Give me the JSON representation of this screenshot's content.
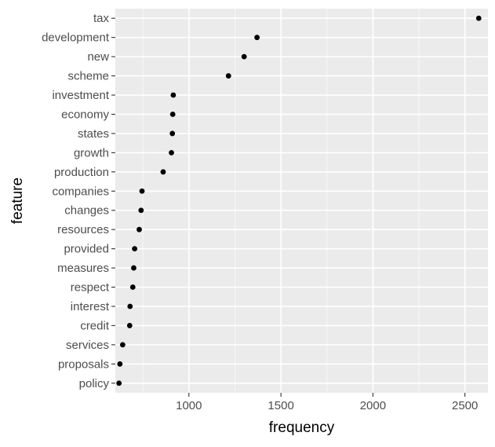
{
  "chart_data": {
    "type": "scatter",
    "xlabel": "frequency",
    "ylabel": "feature",
    "xlim": [
      600,
      2625
    ],
    "x_ticks": [
      1000,
      1500,
      2000,
      2500
    ],
    "x_tick_labels": [
      "1000",
      "1500",
      "2000",
      "2500"
    ],
    "categories": [
      "tax",
      "development",
      "new",
      "scheme",
      "investment",
      "economy",
      "states",
      "growth",
      "production",
      "companies",
      "changes",
      "resources",
      "provided",
      "measures",
      "respect",
      "interest",
      "credit",
      "services",
      "proposals",
      "policy"
    ],
    "values": [
      2575,
      1370,
      1300,
      1215,
      915,
      912,
      910,
      905,
      860,
      745,
      740,
      730,
      705,
      700,
      695,
      680,
      678,
      640,
      625,
      620
    ],
    "grid": true,
    "legend": "none",
    "colors": {
      "panel_background": "#ebebeb",
      "grid_major": "#ffffff",
      "point": "#000000",
      "tick_label": "#4d4d4d",
      "axis_title": "#000000"
    }
  }
}
